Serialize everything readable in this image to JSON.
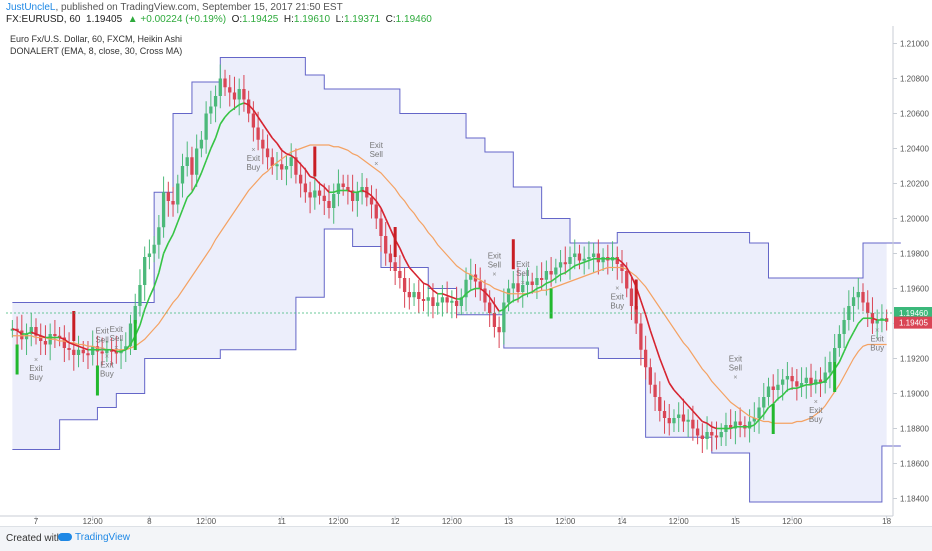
{
  "header": {
    "author": "JustUncleL",
    "published": ", published on TradingView.com, September 15, 2017 21:50 EST",
    "symbol": "FX:EURUSD, 60",
    "last": "1.19405",
    "change": "▲ +0.00224 (+0.19%)",
    "o_label": "O:",
    "o_val": "1.19425",
    "h_label": "H:",
    "h_val": "1.19610",
    "l_label": "L:",
    "l_val": "1.19371",
    "c_label": "C:",
    "c_val": "1.19460"
  },
  "legend": {
    "line1": "Euro Fx/U.S. Dollar, 60, FXCM, Heikin Ashi",
    "line2": "DONALERT (EMA, 8, close, 30, Cross MA)"
  },
  "footer": {
    "created": "Created with",
    "brand": "TradingView"
  },
  "colors": {
    "up": "#4cb97a",
    "down": "#d94555",
    "ema": "#d6232f",
    "ema_up": "#36c445",
    "donchian": "#6466c8",
    "fill": "#eceefb",
    "ma": "#f4a263",
    "arrow_up": "#22b82e",
    "arrow_down": "#c81e24"
  },
  "chart_data": {
    "type": "candlestick",
    "ylim": [
      1.183,
      1.211
    ],
    "y_ticks": [
      "1.21000",
      "1.20800",
      "1.20600",
      "1.20400",
      "1.20200",
      "1.20000",
      "1.19800",
      "1.19600",
      "1.19400",
      "1.19200",
      "1.19000",
      "1.18800",
      "1.18600",
      "1.18400"
    ],
    "x_ticks": [
      {
        "label": "7",
        "idx": 5
      },
      {
        "label": "12:00",
        "idx": 17
      },
      {
        "label": "8",
        "idx": 29
      },
      {
        "label": "12:00",
        "idx": 41
      },
      {
        "label": "11",
        "idx": 57
      },
      {
        "label": "12:00",
        "idx": 69
      },
      {
        "label": "12",
        "idx": 81
      },
      {
        "label": "12:00",
        "idx": 93
      },
      {
        "label": "13",
        "idx": 105
      },
      {
        "label": "12:00",
        "idx": 117
      },
      {
        "label": "14",
        "idx": 129
      },
      {
        "label": "12:00",
        "idx": 141
      },
      {
        "label": "15",
        "idx": 153
      },
      {
        "label": "12:00",
        "idx": 165
      },
      {
        "label": "18",
        "idx": 185
      }
    ],
    "current_price": {
      "value": 1.1946,
      "label": "1.19460"
    },
    "last_close": {
      "value": 1.19405,
      "label": "1.19405"
    },
    "closes": [
      1.1937,
      1.1936,
      1.1931,
      1.1934,
      1.1938,
      1.1933,
      1.193,
      1.1928,
      1.1934,
      1.1933,
      1.1932,
      1.1926,
      1.1925,
      1.1922,
      1.1925,
      1.1923,
      1.1922,
      1.1927,
      1.1924,
      1.1923,
      1.1925,
      1.1924,
      1.1923,
      1.1925,
      1.1927,
      1.194,
      1.195,
      1.1962,
      1.1978,
      1.198,
      1.1985,
      1.1995,
      1.2015,
      1.201,
      1.2008,
      1.202,
      1.203,
      1.2035,
      1.2025,
      1.204,
      1.2045,
      1.206,
      1.2064,
      1.207,
      1.208,
      1.2075,
      1.2072,
      1.2068,
      1.2074,
      1.2068,
      1.206,
      1.2052,
      1.2045,
      1.204,
      1.2035,
      1.203,
      1.2031,
      1.2028,
      1.203,
      1.2035,
      1.2025,
      1.202,
      1.2015,
      1.2012,
      1.2016,
      1.2013,
      1.201,
      1.2006,
      1.2014,
      1.202,
      1.2018,
      1.2016,
      1.201,
      1.2015,
      1.2018,
      1.2012,
      1.2008,
      1.2,
      1.199,
      1.198,
      1.1975,
      1.197,
      1.1966,
      1.1958,
      1.1955,
      1.1958,
      1.1954,
      1.1953,
      1.1955,
      1.195,
      1.1952,
      1.1955,
      1.1952,
      1.1953,
      1.195,
      1.1955,
      1.1965,
      1.1968,
      1.1964,
      1.196,
      1.1952,
      1.1946,
      1.1938,
      1.1935,
      1.1952,
      1.196,
      1.1963,
      1.1958,
      1.1962,
      1.1964,
      1.1962,
      1.1966,
      1.1965,
      1.197,
      1.1968,
      1.1972,
      1.1975,
      1.1974,
      1.1978,
      1.198,
      1.1976,
      1.1977,
      1.1978,
      1.198,
      1.1975,
      1.1978,
      1.1976,
      1.1978,
      1.1974,
      1.197,
      1.196,
      1.195,
      1.194,
      1.1925,
      1.1915,
      1.1905,
      1.1898,
      1.189,
      1.1886,
      1.1883,
      1.1886,
      1.1888,
      1.1884,
      1.1885,
      1.188,
      1.1876,
      1.1874,
      1.1878,
      1.1876,
      1.1875,
      1.1878,
      1.1882,
      1.188,
      1.1884,
      1.1882,
      1.188,
      1.1884,
      1.1886,
      1.1892,
      1.1898,
      1.1904,
      1.1902,
      1.1905,
      1.1908,
      1.191,
      1.1907,
      1.1904,
      1.1906,
      1.1909,
      1.1905,
      1.1908,
      1.1906,
      1.1912,
      1.1918,
      1.1926,
      1.1934,
      1.1942,
      1.195,
      1.1955,
      1.1958,
      1.1952,
      1.1946,
      1.194,
      1.1942,
      1.1943,
      1.1941
    ],
    "ema_line": [
      1.1937,
      1.1936,
      1.1934,
      1.1934,
      1.1935,
      1.1934,
      1.1933,
      1.1932,
      1.1932,
      1.1932,
      1.1932,
      1.1931,
      1.1929,
      1.1928,
      1.1927,
      1.1926,
      1.1925,
      1.1925,
      1.1925,
      1.1925,
      1.1925,
      1.1925,
      1.1924,
      1.1924,
      1.1925,
      1.1928,
      1.1933,
      1.1939,
      1.1948,
      1.1955,
      1.1961,
      1.1969,
      1.198,
      1.1986,
      1.1991,
      1.1998,
      1.2005,
      1.2012,
      1.2015,
      1.202,
      1.2026,
      1.2033,
      1.204,
      1.2046,
      1.2054,
      1.2058,
      1.2061,
      1.2063,
      1.2065,
      1.2066,
      1.2065,
      1.2062,
      1.2058,
      1.2054,
      1.205,
      1.2046,
      1.2043,
      1.2039,
      1.2037,
      1.2036,
      1.2034,
      1.2031,
      1.2028,
      1.2024,
      1.2023,
      1.202,
      1.2018,
      1.2015,
      1.2015,
      1.2016,
      1.2016,
      1.2016,
      1.2015,
      1.2015,
      1.2016,
      1.2015,
      1.2013,
      1.201,
      1.2006,
      1.2,
      1.1994,
      1.1988,
      1.1983,
      1.1977,
      1.1972,
      1.1969,
      1.1966,
      1.1963,
      1.1962,
      1.1959,
      1.1957,
      1.1957,
      1.1956,
      1.1955,
      1.1954,
      1.1954,
      1.1957,
      1.1959,
      1.196,
      1.196,
      1.1958,
      1.1955,
      1.1951,
      1.1947,
      1.1948,
      1.1951,
      1.1953,
      1.1954,
      1.1956,
      1.1957,
      1.1958,
      1.196,
      1.1961,
      1.1963,
      1.1964,
      1.1966,
      1.1968,
      1.1969,
      1.1971,
      1.1973,
      1.1974,
      1.1975,
      1.1976,
      1.1977,
      1.1977,
      1.1977,
      1.1977,
      1.1977,
      1.1977,
      1.1975,
      1.1972,
      1.1967,
      1.1961,
      1.1953,
      1.1945,
      1.1936,
      1.1928,
      1.192,
      1.1913,
      1.1906,
      1.1902,
      1.1899,
      1.1896,
      1.1893,
      1.189,
      1.1887,
      1.1884,
      1.1883,
      1.1881,
      1.188,
      1.188,
      1.188,
      1.188,
      1.1881,
      1.1881,
      1.1881,
      1.1881,
      1.1882,
      1.1885,
      1.1888,
      1.1892,
      1.1894,
      1.1897,
      1.1899,
      1.1902,
      1.1903,
      1.1903,
      1.1904,
      1.1905,
      1.1905,
      1.1906,
      1.1906,
      1.1907,
      1.191,
      1.1914,
      1.1918,
      1.1924,
      1.193,
      1.1935,
      1.194,
      1.1943,
      1.1943,
      1.1943,
      1.1942,
      1.1942,
      1.1942
    ],
    "ma_line": [
      1.1933,
      1.1933,
      1.1933,
      1.1933,
      1.1933,
      1.1932,
      1.1932,
      1.1932,
      1.1931,
      1.1931,
      1.193,
      1.193,
      1.1929,
      1.1929,
      1.1928,
      1.1928,
      1.1927,
      1.1927,
      1.1926,
      1.1926,
      1.1925,
      1.1925,
      1.1925,
      1.1925,
      1.1925,
      1.1926,
      1.1927,
      1.1929,
      1.1931,
      1.1934,
      1.1937,
      1.194,
      1.1944,
      1.1948,
      1.1952,
      1.1955,
      1.1959,
      1.1963,
      1.1967,
      1.1971,
      1.1975,
      1.1979,
      1.1983,
      1.1988,
      1.1992,
      1.1996,
      1.2,
      1.2004,
      1.2008,
      1.2012,
      1.2016,
      1.2019,
      1.2022,
      1.2025,
      1.2027,
      1.203,
      1.2032,
      1.2034,
      1.2036,
      1.2038,
      1.2039,
      1.204,
      1.2041,
      1.2042,
      1.2042,
      1.2042,
      1.2042,
      1.2042,
      1.2041,
      1.2041,
      1.204,
      1.2039,
      1.2037,
      1.2036,
      1.2034,
      1.2032,
      1.203,
      1.2028,
      1.2026,
      1.2023,
      1.202,
      1.2017,
      1.2013,
      1.201,
      1.2006,
      1.2003,
      1.1999,
      1.1996,
      1.1992,
      1.1989,
      1.1985,
      1.1982,
      1.1979,
      1.1976,
      1.1973,
      1.1971,
      1.1969,
      1.1968,
      1.1966,
      1.1965,
      1.1963,
      1.1962,
      1.196,
      1.1959,
      1.1958,
      1.1957,
      1.1957,
      1.1957,
      1.1957,
      1.1957,
      1.1958,
      1.1958,
      1.1959,
      1.1959,
      1.196,
      1.1961,
      1.1962,
      1.1963,
      1.1964,
      1.1965,
      1.1966,
      1.1967,
      1.1968,
      1.1969,
      1.197,
      1.1971,
      1.1972,
      1.1972,
      1.1972,
      1.1972,
      1.1971,
      1.1969,
      1.1967,
      1.1964,
      1.1961,
      1.1957,
      1.1953,
      1.1949,
      1.1945,
      1.1941,
      1.1937,
      1.1933,
      1.1929,
      1.1926,
      1.1922,
      1.1918,
      1.1914,
      1.1911,
      1.1907,
      1.1904,
      1.1901,
      1.1898,
      1.1895,
      1.1893,
      1.1891,
      1.1889,
      1.1887,
      1.1886,
      1.1885,
      1.1884,
      1.1884,
      1.1883,
      1.1883,
      1.1883,
      1.1883,
      1.1883,
      1.1884,
      1.1884,
      1.1885,
      1.1886,
      1.1888,
      1.189,
      1.1893,
      1.1897,
      1.1901,
      1.1905,
      1.191,
      1.1915,
      1.192,
      1.1924,
      1.1927,
      1.1928,
      1.1928,
      1.1928,
      1.1928,
      1.1928
    ],
    "donchian_upper": [
      [
        0,
        1.1952
      ],
      [
        28,
        1.1952
      ],
      [
        30,
        1.2015
      ],
      [
        34,
        1.206
      ],
      [
        38,
        1.2078
      ],
      [
        44,
        1.2092
      ],
      [
        58,
        1.2092
      ],
      [
        62,
        1.2082
      ],
      [
        66,
        1.2074
      ],
      [
        78,
        1.2074
      ],
      [
        82,
        1.206
      ],
      [
        96,
        1.2046
      ],
      [
        100,
        1.2038
      ],
      [
        106,
        1.2018
      ],
      [
        112,
        1.2
      ],
      [
        118,
        1.1986
      ],
      [
        122,
        1.1986
      ],
      [
        128,
        1.1992
      ],
      [
        154,
        1.1992
      ],
      [
        156,
        1.1986
      ],
      [
        160,
        1.1966
      ],
      [
        164,
        1.1966
      ],
      [
        172,
        1.1966
      ],
      [
        180,
        1.1986
      ],
      [
        188,
        1.1986
      ]
    ],
    "donchian_lower": [
      [
        0,
        1.1868
      ],
      [
        8,
        1.1868
      ],
      [
        10,
        1.1885
      ],
      [
        18,
        1.1892
      ],
      [
        22,
        1.19
      ],
      [
        28,
        1.192
      ],
      [
        44,
        1.1925
      ],
      [
        56,
        1.1925
      ],
      [
        60,
        1.1955
      ],
      [
        66,
        1.1994
      ],
      [
        70,
        1.1994
      ],
      [
        72,
        1.1984
      ],
      [
        78,
        1.1972
      ],
      [
        88,
        1.196
      ],
      [
        94,
        1.1945
      ],
      [
        100,
        1.1945
      ],
      [
        104,
        1.1926
      ],
      [
        118,
        1.1926
      ],
      [
        124,
        1.192
      ],
      [
        134,
        1.1875
      ],
      [
        148,
        1.1866
      ],
      [
        152,
        1.1866
      ],
      [
        156,
        1.1838
      ],
      [
        170,
        1.1838
      ],
      [
        180,
        1.1838
      ],
      [
        184,
        1.187
      ],
      [
        188,
        1.187
      ]
    ],
    "labels": [
      {
        "text": "Exit Sell",
        "idx": 19,
        "price": 1.1924,
        "dir": "up"
      },
      {
        "text": "Exit Sell",
        "idx": 22,
        "price": 1.1925,
        "dir": "up"
      },
      {
        "text": "Exit Buy",
        "idx": 5,
        "price": 1.1918,
        "dir": "down"
      },
      {
        "text": "Exit Buy",
        "idx": 20,
        "price": 1.192,
        "dir": "down"
      },
      {
        "text": "Exit Buy",
        "idx": 51,
        "price": 1.2038,
        "dir": "down"
      },
      {
        "text": "Exit Sell",
        "idx": 77,
        "price": 1.203,
        "dir": "up"
      },
      {
        "text": "Exit Sell",
        "idx": 102,
        "price": 1.1967,
        "dir": "up"
      },
      {
        "text": "Exit Sell",
        "idx": 108,
        "price": 1.1962,
        "dir": "up"
      },
      {
        "text": "Exit Buy",
        "idx": 128,
        "price": 1.1959,
        "dir": "down"
      },
      {
        "text": "Exit Sell",
        "idx": 153,
        "price": 1.1908,
        "dir": "up"
      },
      {
        "text": "Exit Buy",
        "idx": 170,
        "price": 1.1894,
        "dir": "down"
      },
      {
        "text": "Exit Buy",
        "idx": 183,
        "price": 1.1935,
        "dir": "down"
      }
    ],
    "signals": [
      {
        "idx": 1,
        "dir": "buy"
      },
      {
        "idx": 13,
        "dir": "sell"
      },
      {
        "idx": 18,
        "dir": "buy"
      },
      {
        "idx": 26,
        "dir": "buy"
      },
      {
        "idx": 64,
        "dir": "sell"
      },
      {
        "idx": 81,
        "dir": "sell"
      },
      {
        "idx": 106,
        "dir": "sell"
      },
      {
        "idx": 114,
        "dir": "buy"
      },
      {
        "idx": 132,
        "dir": "sell"
      },
      {
        "idx": 161,
        "dir": "buy"
      },
      {
        "idx": 174,
        "dir": "buy"
      }
    ]
  }
}
